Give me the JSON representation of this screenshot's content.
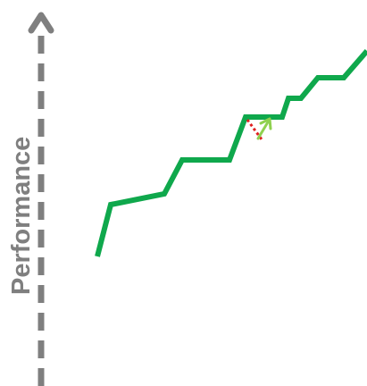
{
  "axis": {
    "label": "Performance",
    "color": "#7f7f7f"
  },
  "path": {
    "color": "#0fa84c"
  },
  "dip": {
    "color": "#e02020"
  },
  "arrow": {
    "color": "#8fd14f"
  }
}
